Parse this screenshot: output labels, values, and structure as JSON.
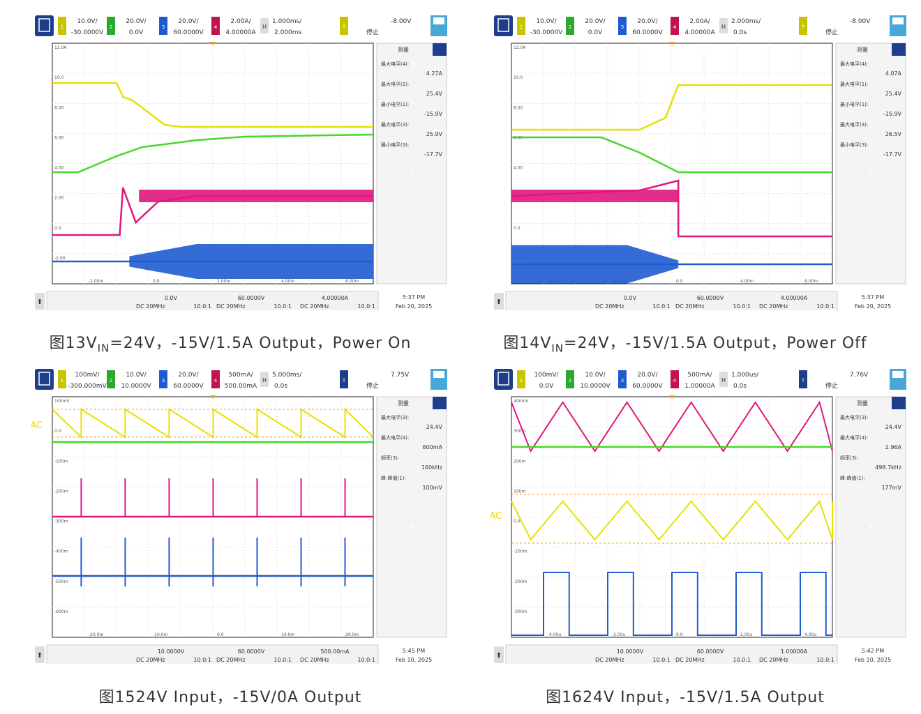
{
  "panels": [
    {
      "caption": {
        "fig": "图13",
        "pre": "V",
        "sub": "IN",
        "post": "=24V，-15V/1.5A Output，Power On"
      },
      "header": {
        "ch1": {
          "scale": "10.0V/",
          "offset": "-30.0000V"
        },
        "ch2": {
          "scale": "20.0V/",
          "offset": "0.0V"
        },
        "ch3": {
          "scale": "20.0V/",
          "offset": "60.0000V"
        },
        "ch4": {
          "scale": "2.00A/",
          "offset": "4.00000A"
        },
        "time": {
          "scale": "1.000ms/",
          "offset": "2.000ms"
        },
        "trigger": {
          "level": "-8.00V",
          "state": "停止"
        }
      },
      "measurements": {
        "title": "测量",
        "items": [
          {
            "label": "最大电平(4):",
            "value": "4.27A",
            "color": "#d4187d"
          },
          {
            "label": "最大电平(1):",
            "value": "25.4V",
            "color": "#c9c400"
          },
          {
            "label": "最小电平(1):",
            "value": "-15.9V",
            "color": "#c9c400"
          },
          {
            "label": "最大电平(3):",
            "value": "25.9V",
            "color": "#1f5bd0"
          },
          {
            "label": "最小电平(3):",
            "value": "-17.7V",
            "color": "#1f5bd0"
          }
        ]
      },
      "footer": {
        "ch1": "0.0V",
        "ch2": "60.0000V",
        "ch3": "4.00000A",
        "c1": "DC 20MHz",
        "r1": "10.0:1",
        "c2": "DC 20MHz",
        "r2": "10.0:1",
        "c3": "DC 20MHz",
        "r3": "10.0:1",
        "time": "5:37 PM",
        "date": "Feb 20, 2025"
      },
      "grid_labels": [
        "12.0A",
        "10.0",
        "8.00",
        "6.00",
        "4.00",
        "2.00",
        "0.0",
        "-2.00"
      ],
      "xtick_labels": [
        "-2.00m",
        "0.0",
        "2.00m",
        "4.00m",
        "6.00m"
      ],
      "chart_data": {
        "type": "line",
        "series": [
          {
            "name": "-VOUT",
            "color": "#e8e000",
            "points": [
              [
                0,
                100
              ],
              [
                20,
                100
              ],
              [
                22,
                120
              ],
              [
                25,
                125
              ],
              [
                35,
                160
              ],
              [
                40,
                163
              ],
              [
                100,
                163
              ]
            ]
          },
          {
            "name": "VIN",
            "color": "#46d62a",
            "points": [
              [
                0,
                228
              ],
              [
                8,
                228
              ],
              [
                20,
                205
              ],
              [
                28,
                192
              ],
              [
                45,
                182
              ],
              [
                60,
                177
              ],
              [
                100,
                174
              ]
            ]
          },
          {
            "name": "IL",
            "color": "#e0167e",
            "points": [
              [
                0,
                318
              ],
              [
                21,
                318
              ],
              [
                22,
                250
              ],
              [
                26,
                300
              ],
              [
                33,
                270
              ],
              [
                45,
                262
              ],
              [
                100,
                262
              ]
            ],
            "band_from": 27,
            "band_to": 100,
            "band": 18
          },
          {
            "name": "VSW",
            "color": "#1f5bd0",
            "points": [
              [
                0,
                356
              ],
              [
                100,
                356
              ]
            ],
            "band_from": 24,
            "band_to": 100,
            "band": 50
          }
        ]
      }
    },
    {
      "caption": {
        "fig": "图14",
        "pre": "V",
        "sub": "IN",
        "post": "=24V，-15V/1.5A Output，Power Off"
      },
      "header": {
        "ch1": {
          "scale": "10.0V/",
          "offset": "-30.0000V"
        },
        "ch2": {
          "scale": "20.0V/",
          "offset": "0.0V"
        },
        "ch3": {
          "scale": "20.0V/",
          "offset": "60.0000V"
        },
        "ch4": {
          "scale": "2.00A/",
          "offset": "4.00000A"
        },
        "time": {
          "scale": "2.000ms/",
          "offset": "0.0s"
        },
        "trigger": {
          "level": "-8.00V",
          "state": "停止"
        }
      },
      "measurements": {
        "title": "测量",
        "items": [
          {
            "label": "最大电平(4):",
            "value": "4.07A",
            "color": "#d4187d"
          },
          {
            "label": "最大电平(1):",
            "value": "25.4V",
            "color": "#c9c400"
          },
          {
            "label": "最小电平(1):",
            "value": "-15.9V",
            "color": "#c9c400"
          },
          {
            "label": "最大电平(3):",
            "value": "26.5V",
            "color": "#1f5bd0"
          },
          {
            "label": "最小电平(3):",
            "value": "-17.7V",
            "color": "#1f5bd0"
          }
        ]
      },
      "footer": {
        "ch1": "0.0V",
        "ch2": "60.0000V",
        "ch3": "4.00000A",
        "c1": "DC 20MHz",
        "r1": "10.0:1",
        "c2": "DC 20MHz",
        "r2": "10.0:1",
        "c3": "DC 20MHz",
        "r3": "10.0:1",
        "time": "5:37 PM",
        "date": "Feb 20, 2025"
      },
      "grid_labels": [
        "12.0A",
        "10.0",
        "8.00",
        "6.00",
        "4.00",
        "2.00",
        "0.0",
        "-2.00"
      ],
      "xtick_labels": [
        "-8.00m",
        "-4.00m",
        "0.0",
        "4.00m",
        "8.00m"
      ],
      "chart_data": {
        "type": "line",
        "series": [
          {
            "name": "-VOUT",
            "color": "#e8e000",
            "points": [
              [
                0,
                167
              ],
              [
                40,
                167
              ],
              [
                48,
                150
              ],
              [
                52,
                103
              ],
              [
                100,
                103
              ]
            ]
          },
          {
            "name": "VIN",
            "color": "#46d62a",
            "points": [
              [
                0,
                178
              ],
              [
                28,
                178
              ],
              [
                40,
                200
              ],
              [
                52,
                228
              ],
              [
                100,
                228
              ]
            ]
          },
          {
            "name": "IL",
            "color": "#e0167e",
            "points": [
              [
                0,
                262
              ],
              [
                40,
                254
              ],
              [
                52,
                240
              ],
              [
                52,
                320
              ],
              [
                100,
                320
              ]
            ],
            "band_from": 0,
            "band_to": 52,
            "band": 18
          },
          {
            "name": "VSW",
            "color": "#1f5bd0",
            "points": [
              [
                0,
                360
              ],
              [
                100,
                360
              ]
            ],
            "band_from": 0,
            "band_to": 52,
            "band": 55
          }
        ]
      }
    },
    {
      "caption": {
        "fig": "图15",
        "pre": "",
        "sub": "",
        "post": "24V Input，-15V/0A Output"
      },
      "header": {
        "ch1": {
          "scale": "100mV/",
          "offset": "-300.000mV"
        },
        "ch2": {
          "scale": "10.0V/",
          "offset": "10.0000V"
        },
        "ch3": {
          "scale": "20.0V/",
          "offset": "60.0000V"
        },
        "ch4": {
          "scale": "500mA/",
          "offset": "500.00mA"
        },
        "time": {
          "scale": "5.000ms/",
          "offset": "0.0s"
        },
        "trigger": {
          "level": "7.75V",
          "state": "停止"
        }
      },
      "measurements": {
        "title": "测量",
        "items": [
          {
            "label": "最大电平(3):",
            "value": "24.4V",
            "color": "#1f5bd0"
          },
          {
            "label": "最大电平(4):",
            "value": "600mA",
            "color": "#d4187d"
          },
          {
            "label": "频率(3):",
            "value": "160kHz",
            "color": "#1f5bd0"
          },
          {
            "label": "峰-峰值(1):",
            "value": "100mV",
            "color": "#e0a000"
          }
        ]
      },
      "footer": {
        "ch1": "10.0000V",
        "ch2": "60.0000V",
        "ch3": "500.00mA",
        "c1": "DC 20MHz",
        "r1": "10.0:1",
        "c2": "DC 20MHz",
        "r2": "10.0:1",
        "c3": "DC 20MHz",
        "r3": "10.0:1",
        "time": "5:45 PM",
        "date": "Feb 10, 2025"
      },
      "grid_labels": [
        "100mV",
        "0.0",
        "-100m",
        "-200m",
        "-300m",
        "-400m",
        "-500m",
        "-600m"
      ],
      "xtick_labels": [
        "-20.0m",
        "-10.0m",
        "0.0",
        "10.0m",
        "20.0m"
      ],
      "chart_data": {
        "type": "line",
        "series": [
          {
            "name": "VOUT,AC",
            "color": "#e8e000",
            "sawtooth": {
              "y_top": 18,
              "y_bot": 58,
              "period": 13.7,
              "start": 9
            }
          },
          {
            "name": "VIN",
            "color": "#46d62a",
            "points": [
              [
                0,
                108
              ],
              [
                100,
                108
              ]
            ]
          },
          {
            "name": "IL",
            "color": "#e0167e",
            "points": [
              [
                0,
                215
              ],
              [
                100,
                215
              ]
            ],
            "spikes": {
              "height": 55,
              "period": 13.7,
              "start": 9
            }
          },
          {
            "name": "VSW",
            "color": "#1f5bd0",
            "points": [
              [
                0,
                300
              ],
              [
                100,
                300
              ]
            ],
            "spikes": {
              "height": 55,
              "period": 13.7,
              "start": 9,
              "both": true
            }
          }
        ]
      }
    },
    {
      "caption": {
        "fig": "图16",
        "pre": "",
        "sub": "",
        "post": "24V Input，-15V/1.5A Output"
      },
      "header": {
        "ch1": {
          "scale": "100mV/",
          "offset": "0.0V"
        },
        "ch2": {
          "scale": "10.0V/",
          "offset": "10.0000V"
        },
        "ch3": {
          "scale": "20.0V/",
          "offset": "60.0000V"
        },
        "ch4": {
          "scale": "500mA/",
          "offset": "1.00000A"
        },
        "time": {
          "scale": "1.000us/",
          "offset": "0.0s"
        },
        "trigger": {
          "level": "7.76V",
          "state": "停止"
        }
      },
      "measurements": {
        "title": "测量",
        "items": [
          {
            "label": "最大电平(3):",
            "value": "24.4V",
            "color": "#1f5bd0"
          },
          {
            "label": "最大电平(4):",
            "value": "2.96A",
            "color": "#d4187d"
          },
          {
            "label": "频率(3):",
            "value": "498.7kHz",
            "color": "#1f5bd0"
          },
          {
            "label": "峰-峰值(1):",
            "value": "177mV",
            "color": "#e0a000"
          }
        ]
      },
      "footer": {
        "ch1": "10.0000V",
        "ch2": "60.0000V",
        "ch3": "1.00000A",
        "c1": "DC 20MHz",
        "r1": "10.0:1",
        "c2": "DC 20MHz",
        "r2": "10.0:1",
        "c3": "DC 20MHz",
        "r3": "10.0:1",
        "time": "5:42 PM",
        "date": "Feb 10, 2025"
      },
      "grid_labels": [
        "400mV",
        "300m",
        "200m",
        "100m",
        "0.0",
        "-100m",
        "-200m",
        "-300m"
      ],
      "xtick_labels": [
        "-4.00u",
        "-2.00u",
        "0.0",
        "2.00u",
        "4.00u"
      ],
      "chart_data": {
        "type": "line",
        "series": [
          {
            "name": "IL",
            "color": "#e0167e",
            "triangle": {
              "y_top": 8,
              "y_bot": 78,
              "period": 20,
              "start": -4
            }
          },
          {
            "name": "VIN",
            "color": "#46d62a",
            "points": [
              [
                0,
                115
              ],
              [
                100,
                115
              ]
            ]
          },
          {
            "name": "VOUT,AC",
            "color": "#e8e000",
            "ripple": {
              "y_top": 150,
              "y_bot": 205,
              "period": 20,
              "start": -4
            }
          },
          {
            "name": "VSW",
            "color": "#1f5bd0",
            "square": {
              "y_hi": 252,
              "y_lo": 342,
              "period": 20,
              "start": 10,
              "duty": 0.4
            }
          }
        ]
      }
    }
  ],
  "labels": {
    "p1": [
      "-VOUT",
      "VIN",
      "IL",
      "VSW"
    ],
    "p2": [
      "-VOUT",
      "VIN",
      "IL",
      "VSW"
    ],
    "p3": [
      "VOUT,AC",
      "VIN",
      "IL",
      "VSW"
    ],
    "p4": [
      "IL",
      "VIN",
      "VOUT,AC",
      "VSW"
    ]
  }
}
